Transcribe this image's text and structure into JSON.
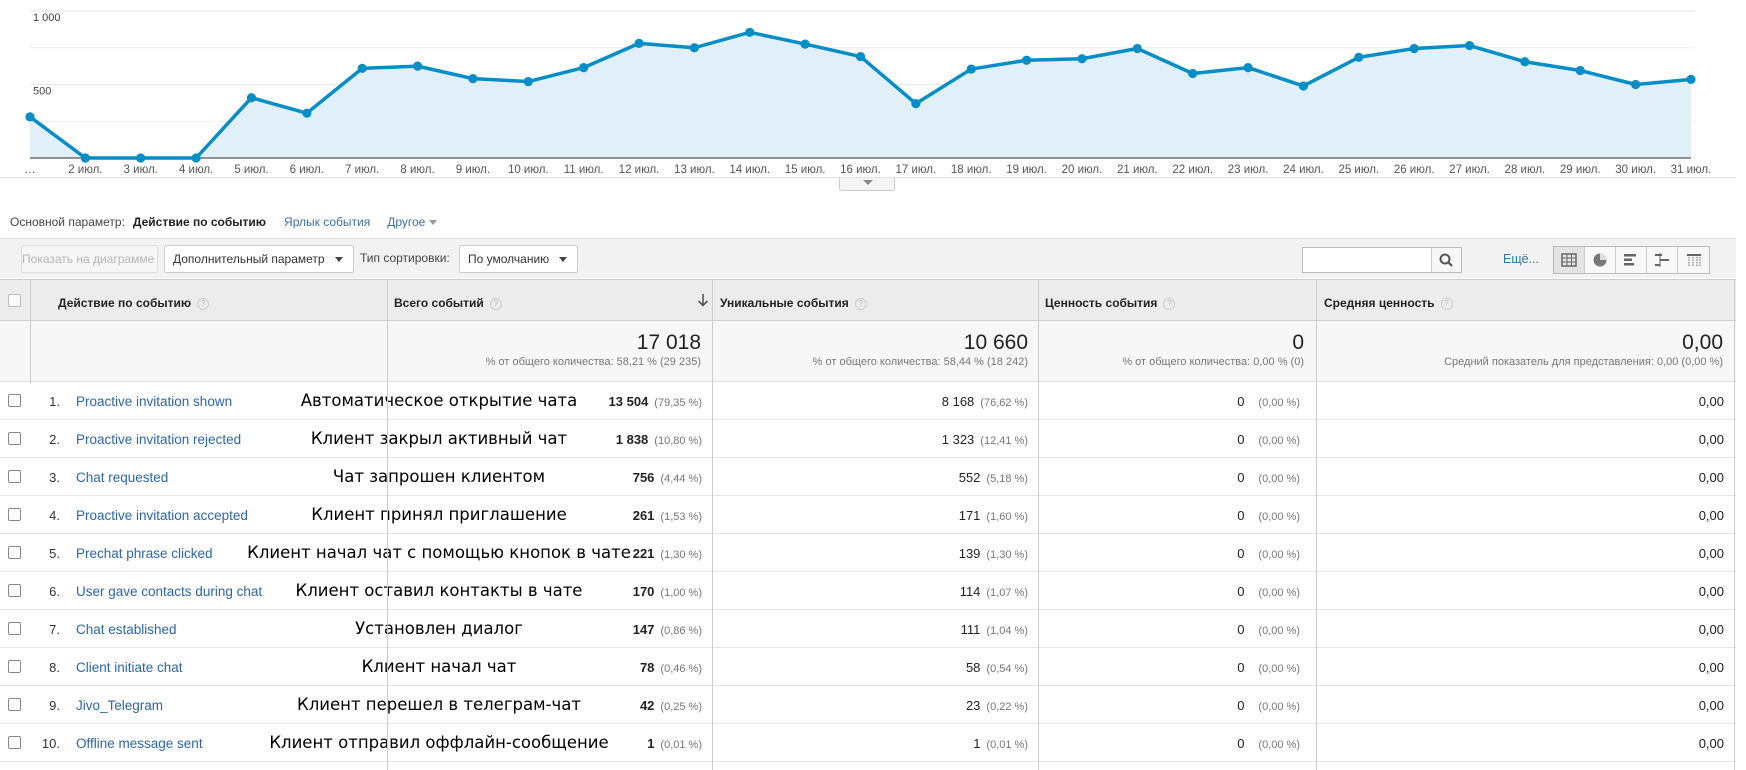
{
  "chart_data": {
    "type": "area",
    "x": [
      "…",
      "2 июл.",
      "3 июл.",
      "4 июл.",
      "5 июл.",
      "6 июл.",
      "7 июл.",
      "8 июл.",
      "9 июл.",
      "10 июл.",
      "11 июл.",
      "12 июл.",
      "13 июл.",
      "14 июл.",
      "15 июл.",
      "16 июл.",
      "17 июл.",
      "18 июл.",
      "19 июл.",
      "20 июл.",
      "21 июл.",
      "22 июл.",
      "23 июл.",
      "24 июл.",
      "25 июл.",
      "26 июл.",
      "27 июл.",
      "28 июл.",
      "29 июл.",
      "30 июл.",
      "31 июл."
    ],
    "values": [
      280,
      0,
      0,
      0,
      410,
      305,
      610,
      625,
      540,
      520,
      615,
      780,
      750,
      855,
      775,
      690,
      370,
      605,
      665,
      675,
      745,
      575,
      615,
      490,
      685,
      745,
      765,
      655,
      595,
      500,
      535
    ],
    "yticks": [
      {
        "label": "1 000",
        "value": 1000
      },
      {
        "label": "500",
        "value": 500
      }
    ],
    "ylim": [
      0,
      1000
    ],
    "grid": true,
    "colors": {
      "line": "#058dc7",
      "fill": "#e1f0f8"
    }
  },
  "primary_dimension": {
    "label": "Основной параметр:",
    "active": "Действие по событию",
    "links": [
      "Ярлык события",
      "Другое"
    ]
  },
  "toolbar": {
    "plot_rows": "Показать на диаграмме",
    "secondary_dimension": "Дополнительный параметр",
    "sort_type_label": "Тип сортировки:",
    "sort_type_value": "По умолчанию",
    "search_placeholder": "",
    "more": "Ещё..."
  },
  "table": {
    "columns": [
      "Действие по событию",
      "Всего событий",
      "Уникальные события",
      "Ценность события",
      "Средняя ценность"
    ],
    "totals": [
      {
        "value": "17 018",
        "note": "% от общего количества: 58,21 % (29 235)"
      },
      {
        "value": "10 660",
        "note": "% от общего количества: 58,44 % (18 242)"
      },
      {
        "value": "0",
        "note": "% от общего количества: 0,00 % (0)"
      },
      {
        "value": "0,00",
        "note": "Средний показатель для представления: 0,00 (0,00 %)"
      }
    ],
    "rows": [
      {
        "idx": "1.",
        "name": "Proactive invitation shown",
        "note": "Автоматическое открытие чата",
        "total": "13 504",
        "total_pct": "(79,35 %)",
        "unique": "8 168",
        "unique_pct": "(76,62 %)",
        "value": "0",
        "value_pct": "(0,00 %)",
        "avg": "0,00"
      },
      {
        "idx": "2.",
        "name": "Proactive invitation rejected",
        "note": "Клиент закрыл активный чат",
        "total": "1 838",
        "total_pct": "(10,80 %)",
        "unique": "1 323",
        "unique_pct": "(12,41 %)",
        "value": "0",
        "value_pct": "(0,00 %)",
        "avg": "0,00"
      },
      {
        "idx": "3.",
        "name": "Chat requested",
        "note": "Чат запрошен клиентом",
        "total": "756",
        "total_pct": "(4,44 %)",
        "unique": "552",
        "unique_pct": "(5,18 %)",
        "value": "0",
        "value_pct": "(0,00 %)",
        "avg": "0,00"
      },
      {
        "idx": "4.",
        "name": "Proactive invitation accepted",
        "note": "Клиент принял приглашение",
        "total": "261",
        "total_pct": "(1,53 %)",
        "unique": "171",
        "unique_pct": "(1,60 %)",
        "value": "0",
        "value_pct": "(0,00 %)",
        "avg": "0,00"
      },
      {
        "idx": "5.",
        "name": "Prechat phrase clicked",
        "note": "Клиент начал чат с помощью кнопок в чате",
        "total": "221",
        "total_pct": "(1,30 %)",
        "unique": "139",
        "unique_pct": "(1,30 %)",
        "value": "0",
        "value_pct": "(0,00 %)",
        "avg": "0,00"
      },
      {
        "idx": "6.",
        "name": "User gave contacts during chat",
        "note": "Клиент оставил контакты в чате",
        "total": "170",
        "total_pct": "(1,00 %)",
        "unique": "114",
        "unique_pct": "(1,07 %)",
        "value": "0",
        "value_pct": "(0,00 %)",
        "avg": "0,00"
      },
      {
        "idx": "7.",
        "name": "Chat established",
        "note": "Установлен диалог",
        "total": "147",
        "total_pct": "(0,86 %)",
        "unique": "111",
        "unique_pct": "(1,04 %)",
        "value": "0",
        "value_pct": "(0,00 %)",
        "avg": "0,00"
      },
      {
        "idx": "8.",
        "name": "Client initiate chat",
        "note": "Клиент начал чат",
        "total": "78",
        "total_pct": "(0,46 %)",
        "unique": "58",
        "unique_pct": "(0,54 %)",
        "value": "0",
        "value_pct": "(0,00 %)",
        "avg": "0,00"
      },
      {
        "idx": "9.",
        "name": "Jivo_Telegram",
        "note": "Клиент перешел в телеграм-чат",
        "total": "42",
        "total_pct": "(0,25 %)",
        "unique": "23",
        "unique_pct": "(0,22 %)",
        "value": "0",
        "value_pct": "(0,00 %)",
        "avg": "0,00"
      },
      {
        "idx": "10.",
        "name": "Offline message sent",
        "note": "Клиент отправил оффлайн-сообщение",
        "total": "1",
        "total_pct": "(0,01 %)",
        "unique": "1",
        "unique_pct": "(0,01 %)",
        "value": "0",
        "value_pct": "(0,00 %)",
        "avg": "0,00"
      }
    ]
  }
}
